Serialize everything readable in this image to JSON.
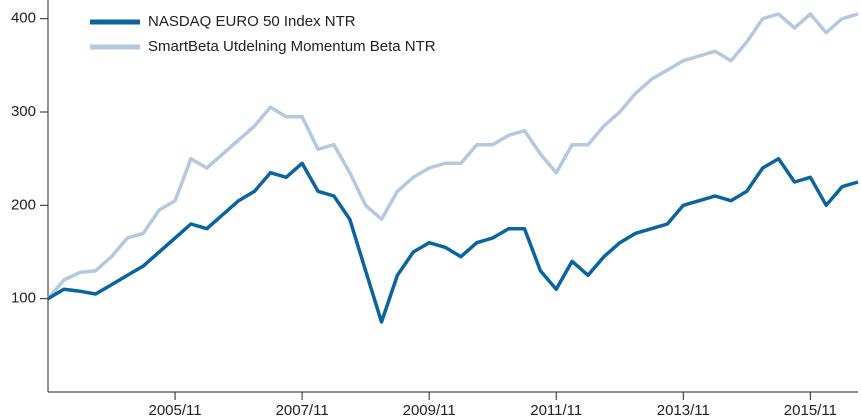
{
  "chart_data": {
    "type": "line",
    "x": [
      "2003/11",
      "2004/02",
      "2004/05",
      "2004/08",
      "2004/11",
      "2005/02",
      "2005/05",
      "2005/08",
      "2005/11",
      "2006/02",
      "2006/05",
      "2006/08",
      "2006/11",
      "2007/02",
      "2007/05",
      "2007/08",
      "2007/11",
      "2008/02",
      "2008/05",
      "2008/08",
      "2008/11",
      "2009/02",
      "2009/05",
      "2009/08",
      "2009/11",
      "2010/02",
      "2010/05",
      "2010/08",
      "2010/11",
      "2011/02",
      "2011/05",
      "2011/08",
      "2011/11",
      "2012/02",
      "2012/05",
      "2012/08",
      "2012/11",
      "2013/02",
      "2013/05",
      "2013/08",
      "2013/11",
      "2014/02",
      "2014/05",
      "2014/08",
      "2014/11",
      "2015/02",
      "2015/05",
      "2015/08",
      "2015/11",
      "2016/02",
      "2016/05",
      "2016/08"
    ],
    "series": [
      {
        "name": "NASDAQ EURO 50 Index NTR",
        "color": "#0a64a0",
        "values": [
          100,
          110,
          108,
          105,
          115,
          125,
          135,
          150,
          165,
          180,
          175,
          190,
          205,
          215,
          235,
          230,
          245,
          215,
          210,
          185,
          130,
          75,
          125,
          150,
          160,
          155,
          145,
          160,
          165,
          175,
          175,
          130,
          110,
          140,
          125,
          145,
          160,
          170,
          175,
          180,
          200,
          205,
          210,
          205,
          215,
          240,
          250,
          225,
          230,
          200,
          220,
          225
        ]
      },
      {
        "name": "SmartBeta Utdelning Momentum Beta NTR",
        "color": "#b4c8e0",
        "values": [
          100,
          120,
          128,
          130,
          145,
          165,
          170,
          195,
          205,
          250,
          240,
          255,
          270,
          285,
          305,
          295,
          295,
          260,
          265,
          235,
          200,
          185,
          215,
          230,
          240,
          245,
          245,
          265,
          265,
          275,
          280,
          255,
          235,
          265,
          265,
          285,
          300,
          320,
          335,
          345,
          355,
          360,
          365,
          355,
          375,
          400,
          405,
          390,
          405,
          385,
          400,
          405
        ]
      }
    ],
    "xlim": [
      "2003/11",
      "2016/08"
    ],
    "xticks": [
      "2005/11",
      "2007/11",
      "2009/11",
      "2011/11",
      "2013/11",
      "2015/11"
    ],
    "ylim": [
      0,
      420
    ],
    "yticks": [
      100,
      200,
      300,
      400
    ],
    "legend": "top-left"
  }
}
